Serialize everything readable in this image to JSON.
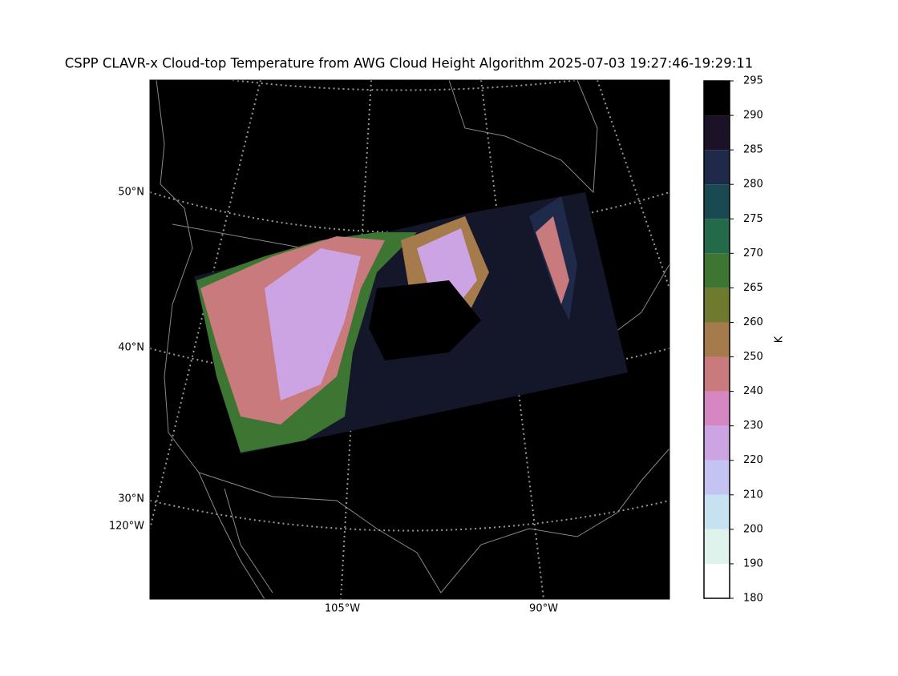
{
  "title": "CSPP CLAVR-x Cloud-top Temperature from AWG Cloud Height Algorithm 2025-07-03 19:27:46-19:29:11",
  "map": {
    "lat_labels": [
      "50°N",
      "40°N",
      "30°N"
    ],
    "lon_labels": [
      "120°W",
      "105°W",
      "90°W"
    ]
  },
  "colorbar": {
    "label": "K",
    "ticks": [
      180,
      190,
      200,
      210,
      220,
      230,
      240,
      250,
      260,
      265,
      270,
      275,
      280,
      285,
      290,
      295
    ],
    "colors": [
      "#ffffff",
      "#dff2ec",
      "#c6e2f1",
      "#c4c3f2",
      "#cca4e4",
      "#d686c0",
      "#c97a7d",
      "#a67b4c",
      "#6f7a2f",
      "#3d7632",
      "#226a4a",
      "#194a52",
      "#1f2a4a",
      "#1c1228",
      "#000000"
    ]
  }
}
